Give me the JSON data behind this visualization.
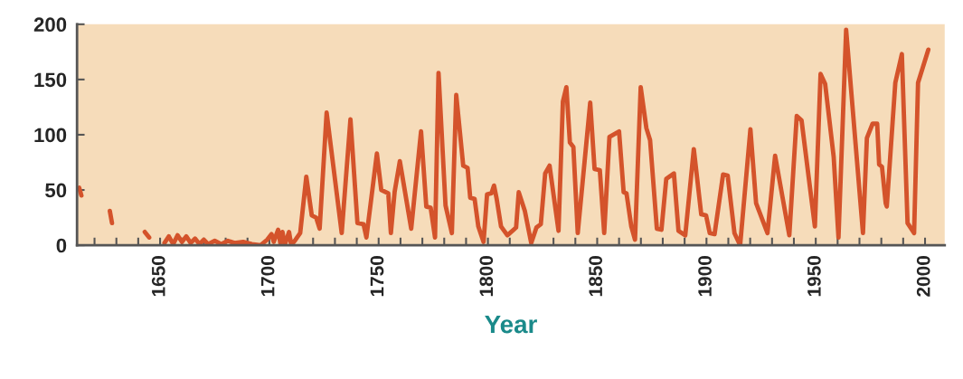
{
  "chart_data": {
    "type": "line",
    "xlabel": "Year",
    "grid": false,
    "x": [
      1613,
      1614,
      1620,
      1627,
      1628,
      1635,
      1643,
      1645,
      1648,
      1652,
      1654,
      1656,
      1658,
      1660,
      1662,
      1664,
      1666,
      1668,
      1670,
      1672,
      1675,
      1678,
      1681,
      1684,
      1688,
      1692,
      1696,
      1699,
      1701,
      1702,
      1704,
      1705,
      1706,
      1707,
      1709,
      1710,
      1712,
      1714.1,
      1716.9,
      1719.4,
      1721.4,
      1723.0,
      1726.2,
      1733.1,
      1737.1,
      1740.3,
      1743.1,
      1744.4,
      1749.2,
      1751.2,
      1754.4,
      1755.6,
      1757.3,
      1759.7,
      1764.9,
      1769.4,
      1771.8,
      1773.8,
      1775.8,
      1777.4,
      1780.6,
      1783.5,
      1785.5,
      1788.7,
      1790.7,
      1791.9,
      1793.9,
      1795.6,
      1798.0,
      1799.6,
      1801.6,
      1802.8,
      1804.0,
      1806.0,
      1808.9,
      1812.9,
      1814.1,
      1816.9,
      1819.8,
      1822.2,
      1824.2,
      1826.2,
      1828.2,
      1832.3,
      1834.3,
      1835.9,
      1837.5,
      1839.1,
      1841.1,
      1846.8,
      1848.8,
      1851.2,
      1853.2,
      1855.6,
      1860.0,
      1862.1,
      1863.4,
      1865.6,
      1867.3,
      1869.9,
      1872.5,
      1874.2,
      1877.3,
      1879.4,
      1881.6,
      1885.1,
      1887.2,
      1890.3,
      1894.2,
      1897.6,
      1899.8,
      1901.5,
      1903.7,
      1907.6,
      1909.7,
      1912.8,
      1915.4,
      1920.1,
      1922.7,
      1927.9,
      1931.4,
      1937.9,
      1941.3,
      1943.5,
      1949.6,
      1952.2,
      1954.3,
      1958.2,
      1960.4,
      1963.9,
      1970.3,
      1971.6,
      1973.4,
      1976.0,
      1978.1,
      1979.0,
      1980.3,
      1982.0,
      1982.5,
      1986.4,
      1989.4,
      1992.0,
      1995.0,
      1996.8,
      2001.5
    ],
    "series": [
      {
        "color": "#d4532b",
        "values": [
          52,
          45,
          null,
          31,
          20,
          null,
          12,
          7,
          null,
          2,
          8,
          1,
          9,
          3,
          8,
          2,
          6,
          1,
          5,
          1,
          4,
          1,
          4,
          2,
          3,
          1,
          0,
          5,
          10,
          3,
          14,
          2,
          12,
          0,
          12,
          0,
          5,
          11,
          62,
          27,
          25,
          15,
          120,
          11,
          114,
          20,
          19,
          7,
          83,
          50,
          47,
          11,
          48,
          76,
          15,
          103,
          35,
          34,
          7,
          156,
          36,
          11,
          136,
          72,
          70,
          43,
          42,
          17,
          3,
          46,
          47,
          54,
          42,
          17,
          9,
          16,
          48,
          31,
          2,
          16,
          19,
          65,
          72,
          13,
          130,
          143,
          93,
          89,
          11,
          129,
          69,
          68,
          11,
          98,
          103,
          48,
          47,
          17,
          5,
          143,
          106,
          95,
          15,
          14,
          60,
          65,
          13,
          9,
          87,
          28,
          27,
          11,
          10,
          64,
          63,
          11,
          0,
          105,
          38,
          11,
          81,
          9,
          117,
          113,
          17,
          155,
          146,
          80,
          7,
          195,
          42,
          11,
          97,
          110,
          110,
          73,
          71,
          38,
          35,
          147,
          173,
          20,
          11,
          147,
          177
        ]
      }
    ],
    "xlim": [
      1612,
      2009
    ],
    "xticks": [
      {
        "value": 1620,
        "label": null
      },
      {
        "value": 1630,
        "label": null
      },
      {
        "value": 1640,
        "label": null
      },
      1650,
      {
        "value": 1660,
        "label": null
      },
      {
        "value": 1670,
        "label": null
      },
      {
        "value": 1680,
        "label": null
      },
      {
        "value": 1690,
        "label": null
      },
      1700,
      {
        "value": 1710,
        "label": null
      },
      {
        "value": 1720,
        "label": null
      },
      {
        "value": 1730,
        "label": null
      },
      {
        "value": 1740,
        "label": null
      },
      1750,
      {
        "value": 1760,
        "label": null
      },
      {
        "value": 1770,
        "label": null
      },
      {
        "value": 1780,
        "label": null
      },
      {
        "value": 1790,
        "label": null
      },
      1800,
      {
        "value": 1810,
        "label": null
      },
      {
        "value": 1820,
        "label": null
      },
      {
        "value": 1830,
        "label": null
      },
      {
        "value": 1840,
        "label": null
      },
      1850,
      {
        "value": 1860,
        "label": null
      },
      {
        "value": 1870,
        "label": null
      },
      {
        "value": 1880,
        "label": null
      },
      {
        "value": 1890,
        "label": null
      },
      1900,
      {
        "value": 1910,
        "label": null
      },
      {
        "value": 1920,
        "label": null
      },
      {
        "value": 1930,
        "label": null
      },
      {
        "value": 1940,
        "label": null
      },
      1950,
      {
        "value": 1960,
        "label": null
      },
      {
        "value": 1970,
        "label": null
      },
      {
        "value": 1980,
        "label": null
      },
      {
        "value": 1990,
        "label": null
      },
      2000
    ],
    "ylim": [
      0,
      200
    ],
    "yticks": [
      0,
      50,
      100,
      150,
      200
    ],
    "marker": "none",
    "line_style": "solid"
  }
}
